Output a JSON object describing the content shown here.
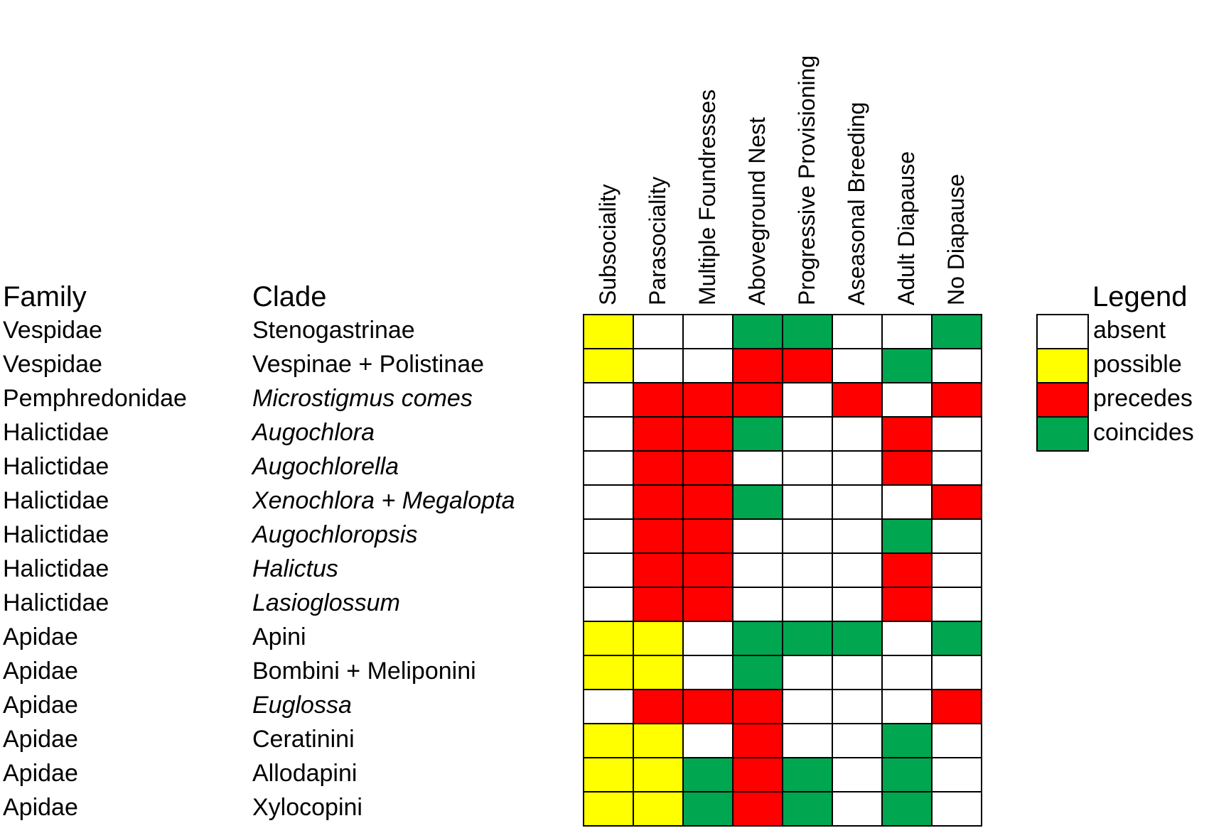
{
  "chart_data": {
    "type": "heatmap",
    "row_headers": {
      "family": "Family",
      "clade": "Clade"
    },
    "columns": [
      "Subsociality",
      "Parasociality",
      "Multiple Foundresses",
      "Aboveground Nest",
      "Progressive Provisioning",
      "Aseasonal Breeding",
      "Adult Diapause",
      "No Diapause"
    ],
    "rows": [
      {
        "family": "Vespidae",
        "clade": "Stenogastrinae",
        "italic": false,
        "values": [
          "possible",
          "absent",
          "absent",
          "coincides",
          "coincides",
          "absent",
          "absent",
          "coincides"
        ]
      },
      {
        "family": "Vespidae",
        "clade": "Vespinae + Polistinae",
        "italic": false,
        "values": [
          "possible",
          "absent",
          "absent",
          "precedes",
          "precedes",
          "absent",
          "coincides",
          "absent"
        ]
      },
      {
        "family": "Pemphredonidae",
        "clade": "Microstigmus comes",
        "italic": true,
        "values": [
          "absent",
          "precedes",
          "precedes",
          "precedes",
          "absent",
          "precedes",
          "absent",
          "precedes"
        ]
      },
      {
        "family": "Halictidae",
        "clade": "Augochlora",
        "italic": true,
        "values": [
          "absent",
          "precedes",
          "precedes",
          "coincides",
          "absent",
          "absent",
          "precedes",
          "absent"
        ]
      },
      {
        "family": "Halictidae",
        "clade": "Augochlorella",
        "italic": true,
        "values": [
          "absent",
          "precedes",
          "precedes",
          "absent",
          "absent",
          "absent",
          "precedes",
          "absent"
        ]
      },
      {
        "family": "Halictidae",
        "clade": "Xenochlora + Megalopta",
        "italic": true,
        "values": [
          "absent",
          "precedes",
          "precedes",
          "coincides",
          "absent",
          "absent",
          "absent",
          "precedes"
        ]
      },
      {
        "family": "Halictidae",
        "clade": "Augochloropsis",
        "italic": true,
        "values": [
          "absent",
          "precedes",
          "precedes",
          "absent",
          "absent",
          "absent",
          "coincides",
          "absent"
        ]
      },
      {
        "family": "Halictidae",
        "clade": "Halictus",
        "italic": true,
        "values": [
          "absent",
          "precedes",
          "precedes",
          "absent",
          "absent",
          "absent",
          "precedes",
          "absent"
        ]
      },
      {
        "family": "Halictidae",
        "clade": "Lasioglossum",
        "italic": true,
        "values": [
          "absent",
          "precedes",
          "precedes",
          "absent",
          "absent",
          "absent",
          "precedes",
          "absent"
        ]
      },
      {
        "family": "Apidae",
        "clade": "Apini",
        "italic": false,
        "values": [
          "possible",
          "possible",
          "absent",
          "coincides",
          "coincides",
          "coincides",
          "absent",
          "coincides"
        ]
      },
      {
        "family": "Apidae",
        "clade": "Bombini + Meliponini",
        "italic": false,
        "values": [
          "possible",
          "possible",
          "absent",
          "coincides",
          "absent",
          "absent",
          "absent",
          "absent"
        ]
      },
      {
        "family": "Apidae",
        "clade": "Euglossa",
        "italic": true,
        "values": [
          "absent",
          "precedes",
          "precedes",
          "precedes",
          "absent",
          "absent",
          "absent",
          "precedes"
        ]
      },
      {
        "family": "Apidae",
        "clade": "Ceratinini",
        "italic": false,
        "values": [
          "possible",
          "possible",
          "absent",
          "precedes",
          "absent",
          "absent",
          "coincides",
          "absent"
        ]
      },
      {
        "family": "Apidae",
        "clade": "Allodapini",
        "italic": false,
        "values": [
          "possible",
          "possible",
          "coincides",
          "precedes",
          "coincides",
          "absent",
          "coincides",
          "absent"
        ]
      },
      {
        "family": "Apidae",
        "clade": "Xylocopini",
        "italic": false,
        "values": [
          "possible",
          "possible",
          "coincides",
          "precedes",
          "coincides",
          "absent",
          "coincides",
          "absent"
        ]
      }
    ],
    "legend": {
      "title": "Legend",
      "items": [
        {
          "key": "absent",
          "label": "absent",
          "color": "#ffffff"
        },
        {
          "key": "possible",
          "label": "possible",
          "color": "#ffff00"
        },
        {
          "key": "precedes",
          "label": "precedes",
          "color": "#ff0000"
        },
        {
          "key": "coincides",
          "label": "coincides",
          "color": "#00a650"
        }
      ],
      "placement": "right"
    },
    "grid": true
  }
}
